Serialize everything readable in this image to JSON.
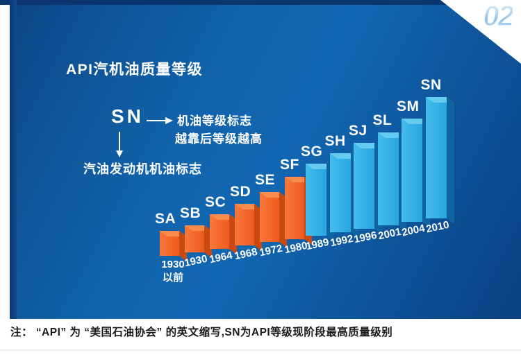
{
  "badge": {
    "number": "02"
  },
  "title": "API汽机油质量等级",
  "annotation": {
    "grade_example": "SN",
    "right_label_line1": "机油等级标志",
    "right_label_line2": "越靠后等级越高",
    "bottom_label": "汽油发动机机油标志"
  },
  "footnote": "注： “API” 为 “美国石油协会” 的英文缩写,SN为API等级现阶段最高质量级别",
  "colors": {
    "panel_blue": "#1164ad",
    "panel_dark_edge": "#0a356e",
    "orange_front": "#ee5a1f",
    "orange_front_light": "#f8793a",
    "orange_top": "#f78c4c",
    "orange_side": "#c84a12",
    "blue_front": "#29a6e0",
    "blue_front_light": "#45bceb",
    "blue_top": "#66cbf1",
    "blue_side": "#10649f",
    "label_text": "#ffffff",
    "footnote_text": "#1a1a1a",
    "badge_blue": "#9ec9ea"
  },
  "chart_data": {
    "type": "bar",
    "title": "API汽机油质量等级",
    "categories": [
      "SA",
      "SB",
      "SC",
      "SD",
      "SE",
      "SF",
      "SG",
      "SH",
      "SJ",
      "SL",
      "SM",
      "SN"
    ],
    "x_labels": [
      "1930\n以前",
      "1930",
      "1964",
      "1968",
      "1972",
      "1980",
      "1989",
      "1992",
      "1996",
      "2001",
      "2004",
      "2010"
    ],
    "values": [
      36,
      39,
      50,
      60,
      72,
      90,
      104,
      114,
      124,
      134,
      149,
      175
    ],
    "note": "3D 阶梯柱形图：柱高为相对示意（图中无数值坐标轴），等级越新柱越高",
    "groups": [
      {
        "color_key": "orange",
        "categories": [
          "SA",
          "SB",
          "SC",
          "SD",
          "SE",
          "SF"
        ]
      },
      {
        "color_key": "blue",
        "categories": [
          "SG",
          "SH",
          "SJ",
          "SL",
          "SM",
          "SN"
        ]
      }
    ],
    "legend": "none",
    "grid": false
  }
}
